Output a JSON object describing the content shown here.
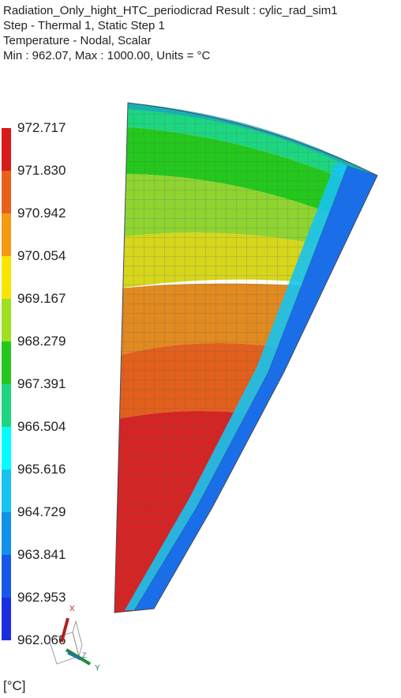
{
  "header": {
    "line1": "Radiation_Only_hight_HTC_periodicrad Result : cylic_rad_sim1",
    "line2": "Step - Thermal 1, Static Step 1",
    "line3": "Temperature - Nodal, Scalar",
    "line4": "Min : 962.07, Max : 1000.00, Units = °C"
  },
  "legend": {
    "labels": [
      "972.717",
      "971.830",
      "970.942",
      "970.054",
      "969.167",
      "968.279",
      "967.391",
      "966.504",
      "965.616",
      "964.729",
      "963.841",
      "962.953",
      "962.066"
    ],
    "colors": [
      "#d81a1a",
      "#e8601a",
      "#f59a12",
      "#f7e600",
      "#9fe020",
      "#24c81c",
      "#1dd680",
      "#00ffff",
      "#17c3f0",
      "#1090e8",
      "#1558e8",
      "#1a2ee0",
      "#0a10d8"
    ]
  },
  "units": "[°C]",
  "triad": {
    "x": "X",
    "y": "Y",
    "z": "Z"
  },
  "icons": {
    "triad": "coordinate-triad-icon"
  }
}
